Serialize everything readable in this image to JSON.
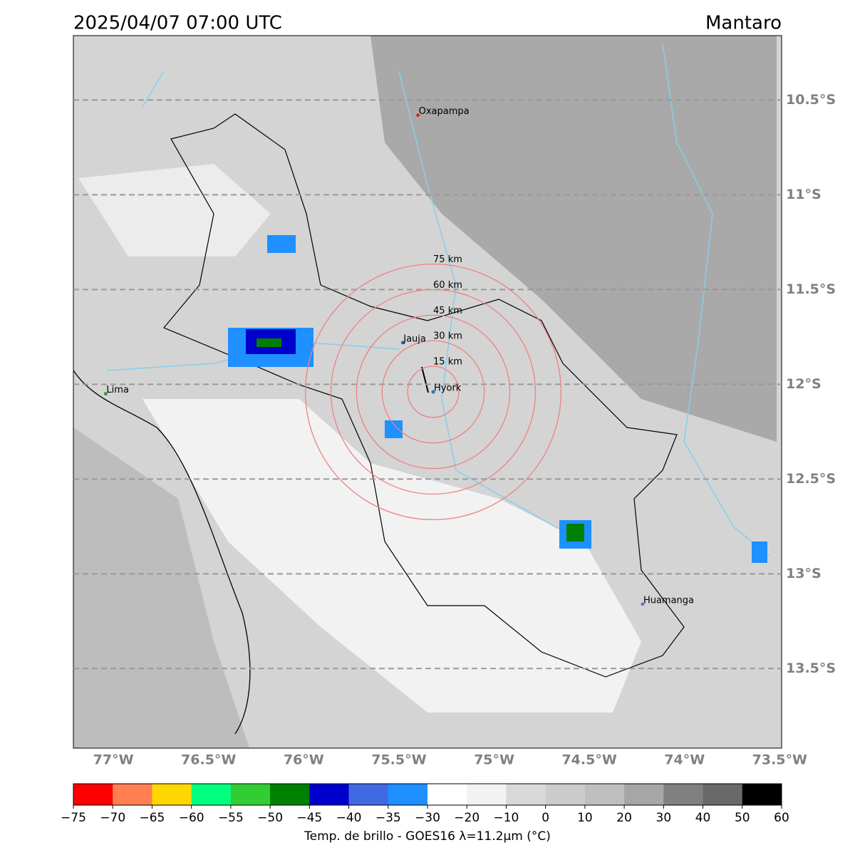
{
  "header": {
    "title": "2025/04/07 07:00 UTC",
    "region": "Mantaro"
  },
  "map": {
    "xlim": [
      -77.21,
      -73.49
    ],
    "ylim": [
      -13.92,
      -10.16
    ],
    "lon_ticks": [
      {
        "value": -77,
        "label": "77°W"
      },
      {
        "value": -76.5,
        "label": "76.5°W"
      },
      {
        "value": -76,
        "label": "76°W"
      },
      {
        "value": -75.5,
        "label": "75.5°W"
      },
      {
        "value": -75,
        "label": "75°W"
      },
      {
        "value": -74.5,
        "label": "74.5°W"
      },
      {
        "value": -74,
        "label": "74°W"
      },
      {
        "value": -73.5,
        "label": "73.5°W"
      }
    ],
    "lat_ticks": [
      {
        "value": -10.5,
        "label": "10.5°S"
      },
      {
        "value": -11,
        "label": "11°S"
      },
      {
        "value": -11.5,
        "label": "11.5°S"
      },
      {
        "value": -12,
        "label": "12°S"
      },
      {
        "value": -12.5,
        "label": "12.5°S"
      },
      {
        "value": -13,
        "label": "13°S"
      },
      {
        "value": -13.5,
        "label": "13.5°S"
      }
    ],
    "cities": [
      {
        "name": "Oxapampa",
        "lon": -75.4,
        "lat": -10.58,
        "color": "#d62728"
      },
      {
        "name": "Jauja",
        "lon": -75.48,
        "lat": -11.78,
        "color": "#1f77b4"
      },
      {
        "name": "Hyork",
        "lon": -75.32,
        "lat": -12.04,
        "color": "#1f77b4"
      },
      {
        "name": "Lima",
        "lon": -77.04,
        "lat": -12.05,
        "color": "#2ca02c"
      },
      {
        "name": "Huamanga",
        "lon": -74.22,
        "lat": -13.16,
        "color": "#9467bd"
      }
    ],
    "rings_km": [
      {
        "value": 15,
        "label": "15 km"
      },
      {
        "value": 30,
        "label": "30 km"
      },
      {
        "value": 45,
        "label": "45 km"
      },
      {
        "value": 60,
        "label": "60 km"
      },
      {
        "value": 75,
        "label": "75 km"
      }
    ]
  },
  "colorbar": {
    "label": "Temp. de brillo - GOES16 λ=11.2μm (°C)",
    "ticks": [
      {
        "value": -75,
        "label": "−75"
      },
      {
        "value": -70,
        "label": "−70"
      },
      {
        "value": -65,
        "label": "−65"
      },
      {
        "value": -60,
        "label": "−60"
      },
      {
        "value": -55,
        "label": "−55"
      },
      {
        "value": -50,
        "label": "−50"
      },
      {
        "value": -45,
        "label": "−45"
      },
      {
        "value": -40,
        "label": "−40"
      },
      {
        "value": -35,
        "label": "−35"
      },
      {
        "value": -30,
        "label": "−30"
      },
      {
        "value": -20,
        "label": "−20"
      },
      {
        "value": -10,
        "label": "−10"
      },
      0,
      10,
      20,
      30,
      40,
      50,
      60
    ],
    "colors": [
      "#ff0000",
      "#ff7f50",
      "#ffd700",
      "#00ff7f",
      "#32cd32",
      "#008000",
      "#0000cd",
      "#4169e1",
      "#1e90ff",
      "#ffffff",
      "#f2f2f2",
      "#d9d9d9",
      "#cccccc",
      "#bfbfbf",
      "#a6a6a6",
      "#808080",
      "#696969",
      "#000000"
    ]
  }
}
